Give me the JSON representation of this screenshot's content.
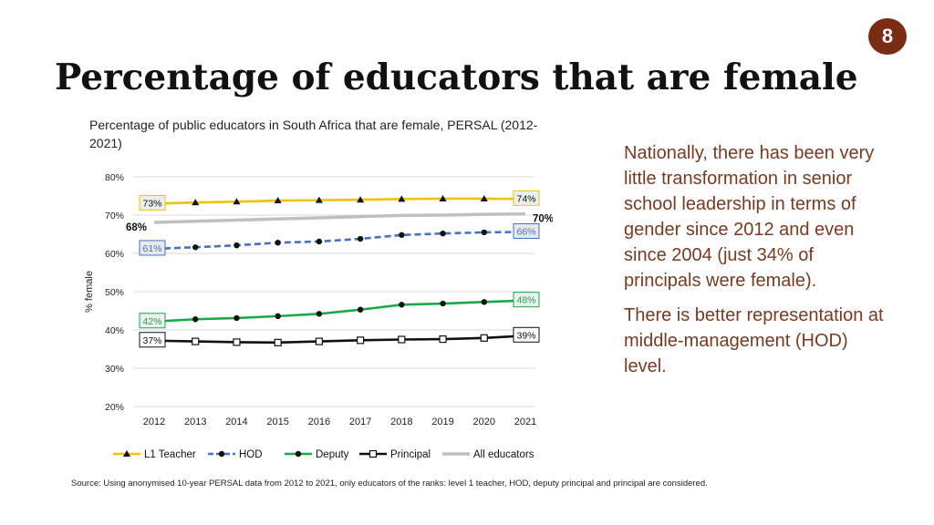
{
  "slide_number": "8",
  "title": "Percentage of educators that are female",
  "subtitle": "Percentage of public educators in South Africa that are female, PERSAL (2012-2021)",
  "side_text": {
    "paragraph1": "Nationally, there has been very little transformation in senior school leadership in terms of gender since 2012 and even since 2004 (just 34% of principals were female).",
    "paragraph2": "There is better representation at middle-management (HOD) level."
  },
  "source": "Source: Using anonymised 10-year PERSAL data from 2012 to 2021, only educators of the ranks: level 1 teacher, HOD, deputy principal and principal are considered.",
  "chart_data": {
    "type": "line",
    "ylabel": "% female",
    "ylim": [
      20,
      80
    ],
    "yticks": [
      20,
      30,
      40,
      50,
      60,
      70,
      80
    ],
    "ytick_labels": [
      "20%",
      "30%",
      "40%",
      "50%",
      "60%",
      "70%",
      "80%"
    ],
    "categories": [
      "2012",
      "2013",
      "2014",
      "2015",
      "2016",
      "2017",
      "2018",
      "2019",
      "2020",
      "2021"
    ],
    "grid": true,
    "legend_position": "bottom",
    "series": [
      {
        "name": "L1 Teacher",
        "color": "#f2c200",
        "marker": "triangle",
        "dash": "solid",
        "values": [
          73,
          73.3,
          73.5,
          73.8,
          73.9,
          74,
          74.2,
          74.3,
          74.3,
          74.2
        ],
        "start_label": "73%",
        "end_label": "74%",
        "label_style": "box"
      },
      {
        "name": "HOD",
        "color": "#4472c4",
        "marker": "circle",
        "dash": "dashed",
        "values": [
          61.2,
          61.6,
          62.1,
          62.8,
          63.1,
          63.8,
          64.8,
          65.2,
          65.5,
          65.6
        ],
        "start_label": "61%",
        "end_label": "66%",
        "label_style": "box"
      },
      {
        "name": "Deputy",
        "color": "#1aa84a",
        "marker": "circle",
        "dash": "solid",
        "values": [
          42.2,
          42.8,
          43.1,
          43.6,
          44.2,
          45.3,
          46.6,
          46.9,
          47.3,
          47.7
        ],
        "start_label": "42%",
        "end_label": "48%",
        "label_style": "box"
      },
      {
        "name": "Principal",
        "color": "#111111",
        "marker": "square",
        "dash": "solid",
        "values": [
          37.2,
          37,
          36.8,
          36.7,
          37,
          37.3,
          37.5,
          37.6,
          37.9,
          38.5
        ],
        "start_label": "37%",
        "end_label": "39%",
        "label_style": "box"
      },
      {
        "name": "All educators",
        "color": "#bfbfbf",
        "marker": "none",
        "dash": "solid",
        "values": [
          68.1,
          68.4,
          68.7,
          69,
          69.3,
          69.6,
          69.9,
          70,
          70.2,
          70.3
        ],
        "start_label": "68%",
        "end_label": "70%",
        "label_style": "bold"
      }
    ]
  }
}
